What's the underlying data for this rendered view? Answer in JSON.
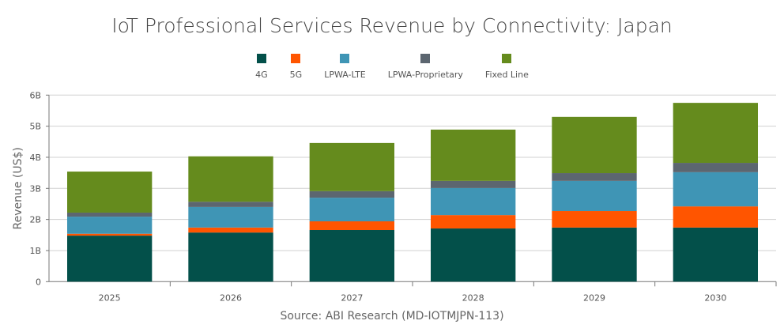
{
  "chart_data": {
    "type": "bar",
    "stacked": true,
    "title": "IoT Professional Services Revenue by Connectivity: Japan",
    "xlabel": "",
    "ylabel": "Revenue (US$)",
    "ylim": [
      0,
      6000000000
    ],
    "yticks": [
      "0",
      "1B",
      "2B",
      "3B",
      "4B",
      "5B",
      "6B"
    ],
    "grid": true,
    "legend_position": "top",
    "categories": [
      "2025",
      "2026",
      "2027",
      "2028",
      "2029",
      "2030"
    ],
    "series": [
      {
        "name": "4G",
        "color": "#03504a",
        "values": [
          1480000000.0,
          1580000000.0,
          1660000000.0,
          1710000000.0,
          1740000000.0,
          1740000000.0
        ]
      },
      {
        "name": "5G",
        "color": "#ff5500",
        "values": [
          60000000.0,
          160000000.0,
          280000000.0,
          430000000.0,
          530000000.0,
          680000000.0
        ]
      },
      {
        "name": "LPWA-LTE",
        "color": "#3f95b5",
        "values": [
          550000000.0,
          660000000.0,
          760000000.0,
          870000000.0,
          970000000.0,
          1100000000.0
        ]
      },
      {
        "name": "LPWA-Proprietary",
        "color": "#5c6670",
        "values": [
          130000000.0,
          170000000.0,
          210000000.0,
          230000000.0,
          250000000.0,
          300000000.0
        ]
      },
      {
        "name": "Fixed Line",
        "color": "#658b1d",
        "values": [
          1320000000.0,
          1460000000.0,
          1550000000.0,
          1650000000.0,
          1810000000.0,
          1930000000.0
        ]
      }
    ]
  },
  "source": "Source: ABI Research (MD-IOTMJPN-113)"
}
